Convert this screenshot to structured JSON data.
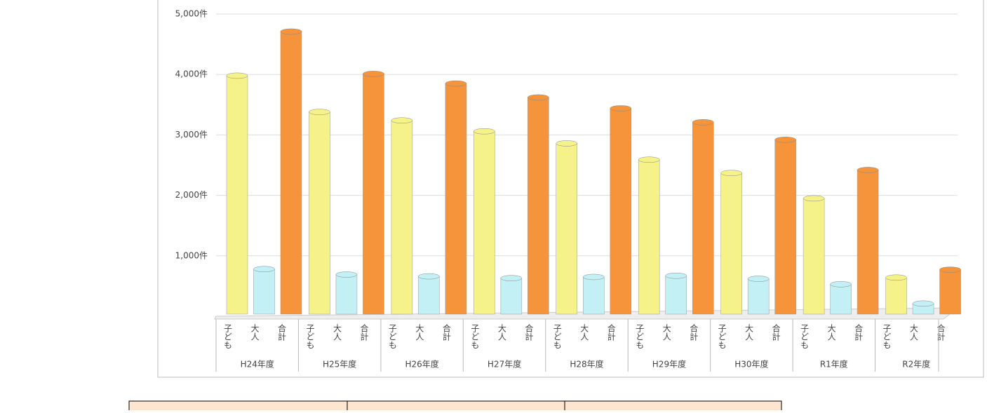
{
  "chart_data": {
    "type": "bar",
    "categories": [
      "H24年度",
      "H25年度",
      "H26年度",
      "H27年度",
      "H28年度",
      "H29年度",
      "H30年度",
      "R1年度",
      "R2年度"
    ],
    "series": [
      {
        "name": "子ども",
        "color": "#f6f28a",
        "values": [
          3980,
          3380,
          3240,
          3060,
          2860,
          2590,
          2370,
          1950,
          640
        ]
      },
      {
        "name": "大人",
        "color": "#c2f0f4",
        "values": [
          780,
          690,
          660,
          630,
          650,
          670,
          620,
          530,
          210
        ]
      },
      {
        "name": "合計",
        "color": "#f5943a",
        "values": [
          4710,
          4010,
          3850,
          3620,
          3440,
          3210,
          2920,
          2420,
          770
        ]
      }
    ],
    "ylim": [
      0,
      5000
    ],
    "yticks": [
      {
        "value": 1000,
        "label": "1,000件"
      },
      {
        "value": 2000,
        "label": "2,000件"
      },
      {
        "value": 3000,
        "label": "3,000件"
      },
      {
        "value": 4000,
        "label": "4,000件"
      },
      {
        "value": 5000,
        "label": "5,000件"
      }
    ],
    "grid": true
  }
}
